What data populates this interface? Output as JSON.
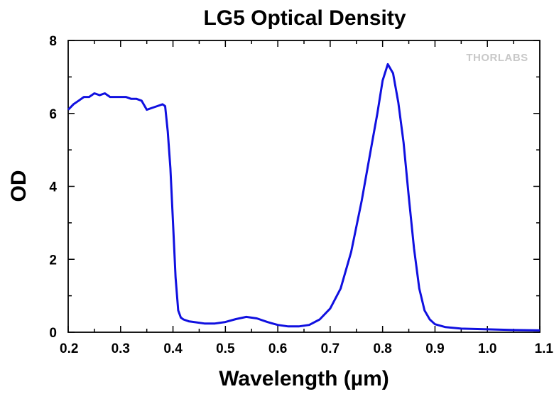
{
  "chart_data": {
    "type": "line",
    "title": "LG5 Optical Density",
    "xlabel": "Wavelength (µm)",
    "ylabel": "OD",
    "xlim": [
      0.2,
      1.1
    ],
    "ylim": [
      0,
      8
    ],
    "x_ticks": [
      "0.2",
      "0.3",
      "0.4",
      "0.5",
      "0.6",
      "0.7",
      "0.8",
      "0.9",
      "1.0",
      "1.1"
    ],
    "y_ticks": [
      "0",
      "2",
      "4",
      "6",
      "8"
    ],
    "grid": false,
    "logo_text": "THORLABS",
    "series": [
      {
        "color": "#1010e0",
        "x": [
          0.2,
          0.21,
          0.22,
          0.23,
          0.24,
          0.25,
          0.26,
          0.27,
          0.28,
          0.29,
          0.3,
          0.31,
          0.32,
          0.33,
          0.34,
          0.35,
          0.36,
          0.37,
          0.38,
          0.385,
          0.39,
          0.395,
          0.4,
          0.405,
          0.41,
          0.415,
          0.42,
          0.43,
          0.44,
          0.46,
          0.48,
          0.5,
          0.52,
          0.54,
          0.56,
          0.58,
          0.6,
          0.62,
          0.64,
          0.66,
          0.68,
          0.7,
          0.72,
          0.74,
          0.76,
          0.78,
          0.79,
          0.8,
          0.81,
          0.82,
          0.83,
          0.84,
          0.85,
          0.86,
          0.87,
          0.88,
          0.89,
          0.9,
          0.92,
          0.95,
          1.0,
          1.05,
          1.1
        ],
        "y": [
          6.1,
          6.25,
          6.35,
          6.45,
          6.45,
          6.55,
          6.5,
          6.55,
          6.45,
          6.45,
          6.45,
          6.45,
          6.4,
          6.4,
          6.35,
          6.1,
          6.15,
          6.2,
          6.25,
          6.2,
          5.5,
          4.5,
          3.0,
          1.5,
          0.6,
          0.4,
          0.35,
          0.3,
          0.28,
          0.24,
          0.24,
          0.28,
          0.36,
          0.42,
          0.38,
          0.28,
          0.2,
          0.16,
          0.16,
          0.2,
          0.35,
          0.65,
          1.2,
          2.2,
          3.6,
          5.2,
          6.0,
          6.9,
          7.35,
          7.1,
          6.3,
          5.2,
          3.7,
          2.3,
          1.2,
          0.6,
          0.35,
          0.22,
          0.14,
          0.1,
          0.08,
          0.06,
          0.05
        ]
      }
    ]
  }
}
